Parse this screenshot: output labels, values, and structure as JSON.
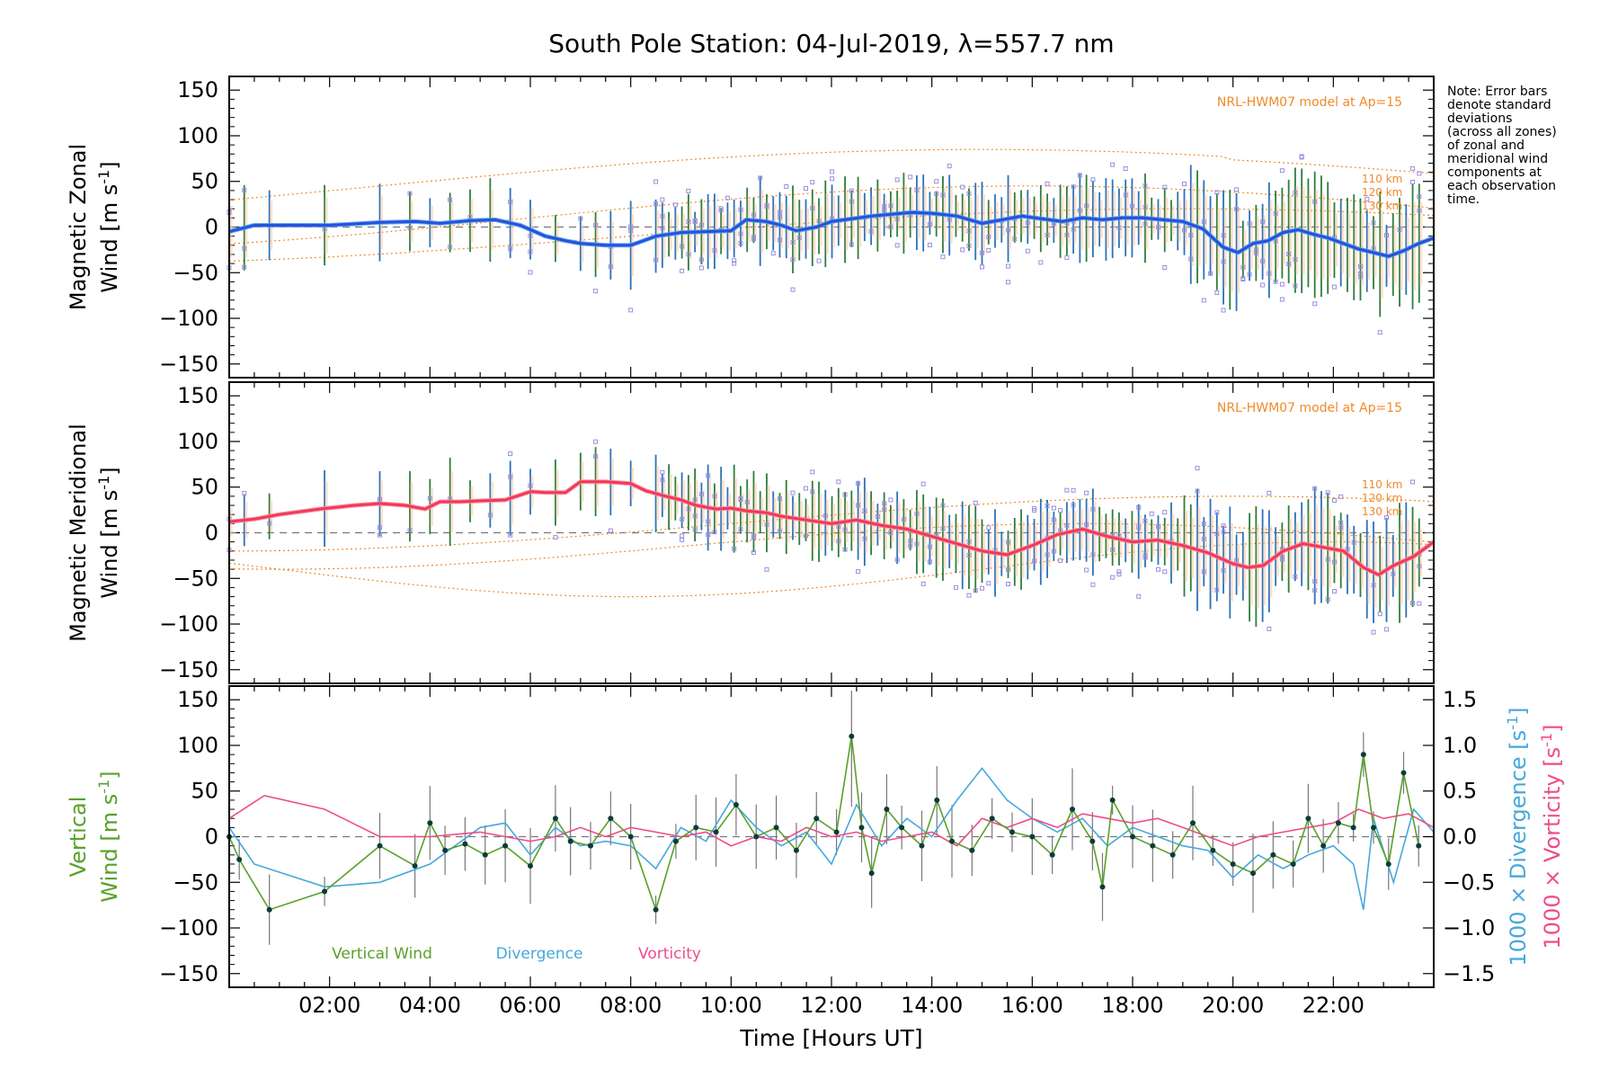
{
  "chart_data": {
    "type": "line",
    "title": "South Pole Station: 04-Jul-2019, λ=557.7 nm",
    "xlabel": "Time [Hours UT]",
    "xlim": [
      0,
      24
    ],
    "x_ticks": [
      "02:00",
      "04:00",
      "06:00",
      "08:00",
      "10:00",
      "12:00",
      "14:00",
      "16:00",
      "18:00",
      "20:00",
      "22:00"
    ],
    "note": [
      "Note: Error bars",
      "denote standard",
      "deviations",
      "(across all zones)",
      "of zonal and",
      "meridional wind",
      "components at",
      "each observation",
      "time."
    ],
    "colors": {
      "zonal": "#2a4fe0",
      "zonal_light": "#4aa3ea",
      "meridional": "#f03a5a",
      "model": "#f08a2a",
      "vertical": "#5aa02a",
      "divergence": "#46a8dc",
      "vorticity": "#ef4b8b",
      "scatter": "#9a8ee0",
      "errorbar_green": "#2f7d3a",
      "errorbar_blue": "#2b72b8"
    },
    "panels": [
      {
        "name": "zonal",
        "ylabel_line1": "Magnetic Zonal",
        "ylabel_line2": "Wind [m s",
        "ylabel_sup": "-1",
        "ylabel_close": "]",
        "ylim": [
          -165,
          165
        ],
        "yticks": [
          "150",
          "100",
          "50",
          "0",
          "−50",
          "−100",
          "−150"
        ],
        "model_label": "NRL-HWM07 model at Ap=15",
        "model_alts": [
          "110 km",
          "120 km",
          "130 km"
        ],
        "series": [
          {
            "name": "Magnetic Zonal Wind",
            "x": [
              0.0,
              0.5,
              0.8,
              1.5,
              2.0,
              3.0,
              3.7,
              4.2,
              4.8,
              5.3,
              5.8,
              6.3,
              6.7,
              7.0,
              7.5,
              8.0,
              8.5,
              9.0,
              9.5,
              10.0,
              10.3,
              10.7,
              11.0,
              11.3,
              11.7,
              12.0,
              12.4,
              12.8,
              13.2,
              13.6,
              14.0,
              14.5,
              15.0,
              15.4,
              15.8,
              16.2,
              16.6,
              17.0,
              17.4,
              17.8,
              18.2,
              18.6,
              19.0,
              19.4,
              19.8,
              20.1,
              20.4,
              20.7,
              21.0,
              21.3,
              21.6,
              21.9,
              22.2,
              22.5,
              22.8,
              23.1,
              23.4,
              23.7,
              24.0
            ],
            "y": [
              -5,
              2,
              2,
              2,
              2,
              5,
              6,
              4,
              7,
              8,
              2,
              -10,
              -15,
              -18,
              -20,
              -20,
              -10,
              -6,
              -5,
              -4,
              8,
              6,
              2,
              -4,
              0,
              6,
              9,
              12,
              14,
              16,
              15,
              12,
              4,
              8,
              12,
              9,
              6,
              10,
              8,
              10,
              10,
              8,
              6,
              -2,
              -22,
              -28,
              -18,
              -15,
              -6,
              -3,
              -8,
              -12,
              -18,
              -24,
              -28,
              -32,
              -26,
              -18,
              -12
            ]
          }
        ]
      },
      {
        "name": "meridional",
        "ylabel_line1": "Magnetic Meridional",
        "ylabel_line2": "Wind [m s",
        "ylabel_sup": "-1",
        "ylabel_close": "]",
        "ylim": [
          -165,
          165
        ],
        "yticks": [
          "150",
          "100",
          "50",
          "0",
          "−50",
          "−100",
          "−150"
        ],
        "model_label": "NRL-HWM07 model at Ap=15",
        "model_alts": [
          "110 km",
          "120 km",
          "130 km"
        ],
        "series": [
          {
            "name": "Magnetic Meridional Wind",
            "x": [
              0.0,
              0.5,
              1.0,
              1.8,
              2.5,
              3.0,
              3.5,
              3.9,
              4.2,
              4.6,
              5.0,
              5.5,
              6.0,
              6.3,
              6.7,
              7.0,
              7.5,
              8.0,
              8.3,
              8.7,
              9.0,
              9.3,
              9.7,
              10.0,
              10.3,
              10.7,
              11.0,
              11.5,
              12.0,
              12.5,
              13.0,
              13.5,
              14.0,
              14.5,
              15.0,
              15.5,
              16.0,
              16.5,
              17.0,
              17.5,
              18.0,
              18.5,
              19.0,
              19.5,
              20.0,
              20.3,
              20.6,
              21.0,
              21.4,
              21.8,
              22.2,
              22.6,
              22.9,
              23.2,
              23.6,
              24.0
            ],
            "y": [
              12,
              15,
              20,
              26,
              30,
              32,
              30,
              26,
              34,
              34,
              35,
              36,
              45,
              44,
              44,
              56,
              56,
              54,
              46,
              40,
              36,
              30,
              26,
              27,
              24,
              22,
              18,
              14,
              10,
              14,
              8,
              4,
              -4,
              -12,
              -20,
              -24,
              -14,
              -2,
              4,
              -4,
              -10,
              -8,
              -14,
              -22,
              -34,
              -38,
              -36,
              -20,
              -12,
              -16,
              -20,
              -38,
              -46,
              -36,
              -26,
              -10
            ]
          }
        ]
      },
      {
        "name": "vertical",
        "ylabel_line1": "Vertical",
        "ylabel_line2": "Wind [m s",
        "ylabel_sup": "-1",
        "ylabel_close": "]",
        "ylim": [
          -165,
          165
        ],
        "yticks": [
          "150",
          "100",
          "50",
          "0",
          "−50",
          "−100",
          "−150"
        ],
        "right_axis_div_label": "1000 × Divergence [s",
        "right_axis_vort_label": "1000 × Vorticity [s",
        "right_axis_sup": "-1",
        "right_axis_close": "]",
        "right_ylim": [
          -1.65,
          1.65
        ],
        "right_yticks": [
          "1.5",
          "1.0",
          "0.5",
          "0.0",
          "−0.5",
          "−1.0",
          "−1.5"
        ],
        "legend": [
          "Vertical Wind",
          "Divergence",
          "Vorticity"
        ],
        "series": [
          {
            "name": "Vertical Wind",
            "x": [
              0.0,
              0.2,
              0.8,
              1.9,
              3.0,
              3.7,
              4.0,
              4.3,
              4.7,
              5.1,
              5.5,
              6.0,
              6.5,
              6.8,
              7.2,
              7.6,
              8.0,
              8.5,
              8.9,
              9.3,
              9.7,
              10.1,
              10.5,
              10.9,
              11.3,
              11.7,
              12.1,
              12.4,
              12.6,
              12.8,
              13.1,
              13.4,
              13.8,
              14.1,
              14.4,
              14.8,
              15.2,
              15.6,
              16.0,
              16.4,
              16.8,
              17.2,
              17.4,
              17.6,
              18.0,
              18.4,
              18.8,
              19.2,
              19.6,
              20.0,
              20.4,
              20.8,
              21.2,
              21.5,
              21.8,
              22.1,
              22.4,
              22.6,
              22.8,
              23.1,
              23.4,
              23.7
            ],
            "y": [
              0,
              -25,
              -80,
              -60,
              -10,
              -32,
              15,
              -15,
              -8,
              -20,
              -10,
              -32,
              20,
              -5,
              -10,
              20,
              0,
              -80,
              -5,
              10,
              5,
              35,
              0,
              10,
              -15,
              20,
              5,
              110,
              10,
              -40,
              30,
              10,
              -10,
              40,
              -5,
              -15,
              20,
              5,
              0,
              -20,
              30,
              -5,
              -55,
              40,
              0,
              -10,
              -20,
              15,
              -15,
              -30,
              -40,
              -20,
              -30,
              20,
              -10,
              15,
              10,
              90,
              10,
              -30,
              70,
              -10
            ]
          },
          {
            "name": "Divergence",
            "axis": "right",
            "x": [
              0.0,
              0.5,
              1.9,
              3.0,
              4.0,
              5.0,
              5.5,
              6.0,
              6.5,
              7.0,
              7.5,
              8.0,
              8.5,
              9.0,
              9.5,
              10.0,
              10.5,
              11.0,
              11.5,
              12.0,
              12.5,
              13.0,
              13.5,
              14.0,
              14.5,
              15.0,
              15.5,
              16.0,
              16.5,
              17.0,
              17.5,
              18.0,
              18.5,
              19.0,
              19.5,
              20.0,
              20.5,
              21.0,
              21.5,
              22.0,
              22.4,
              22.6,
              22.8,
              23.2,
              23.6,
              24.0
            ],
            "y": [
              0.1,
              -0.3,
              -0.55,
              -0.5,
              -0.3,
              0.1,
              0.15,
              -0.2,
              0.1,
              -0.1,
              -0.05,
              -0.1,
              -0.35,
              0.1,
              -0.05,
              0.4,
              0.1,
              -0.1,
              0.05,
              -0.3,
              0.35,
              -0.1,
              0.2,
              0.0,
              0.4,
              0.75,
              0.4,
              0.2,
              0.05,
              0.2,
              -0.1,
              0.1,
              0.0,
              -0.1,
              -0.15,
              -0.45,
              -0.2,
              -0.35,
              -0.2,
              -0.1,
              -0.3,
              -0.8,
              0.2,
              -0.5,
              0.3,
              0.05
            ]
          },
          {
            "name": "Vorticity",
            "axis": "right",
            "x": [
              0.0,
              0.7,
              1.9,
              3.0,
              4.0,
              5.0,
              5.5,
              6.0,
              6.5,
              7.0,
              7.5,
              8.0,
              8.5,
              9.0,
              9.5,
              10.0,
              10.5,
              11.0,
              11.5,
              12.0,
              12.5,
              13.0,
              13.5,
              14.0,
              14.5,
              15.0,
              15.5,
              16.0,
              16.5,
              17.0,
              17.5,
              18.0,
              18.5,
              19.0,
              19.5,
              20.0,
              20.5,
              21.0,
              21.5,
              22.0,
              22.5,
              23.0,
              23.5,
              24.0
            ],
            "y": [
              0.2,
              0.45,
              0.3,
              0.0,
              0.0,
              0.05,
              0.0,
              -0.05,
              0.0,
              0.1,
              0.0,
              0.1,
              0.05,
              0.0,
              0.05,
              -0.1,
              0.0,
              -0.05,
              0.1,
              0.0,
              0.05,
              -0.05,
              0.0,
              0.05,
              -0.1,
              0.2,
              0.1,
              0.2,
              0.1,
              0.25,
              0.2,
              0.15,
              0.2,
              0.1,
              0.0,
              -0.1,
              0.0,
              0.05,
              0.1,
              0.15,
              0.3,
              0.2,
              0.25,
              0.1
            ]
          }
        ]
      }
    ]
  }
}
